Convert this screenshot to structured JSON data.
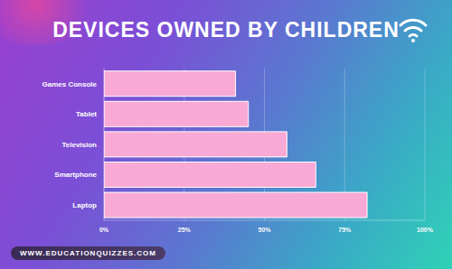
{
  "chart_data": {
    "type": "bar",
    "title": "DEVICES OWNED BY CHILDREN",
    "orientation": "horizontal",
    "categories": [
      "Games Console",
      "Tablet",
      "Television",
      "Smartphone",
      "Laptop"
    ],
    "values": [
      41,
      45,
      57,
      66,
      82
    ],
    "color": "#f9a9d5",
    "xlim": [
      0,
      100
    ],
    "xticks": [
      {
        "value": 0,
        "label": "0%"
      },
      {
        "value": 25,
        "label": "25%"
      },
      {
        "value": 50,
        "label": "50%"
      },
      {
        "value": 75,
        "label": "75%"
      },
      {
        "value": 100,
        "label": "100%"
      }
    ],
    "grid": true,
    "annotations": [
      "WWW.EDUCATIONQUIZZES.COM"
    ]
  }
}
